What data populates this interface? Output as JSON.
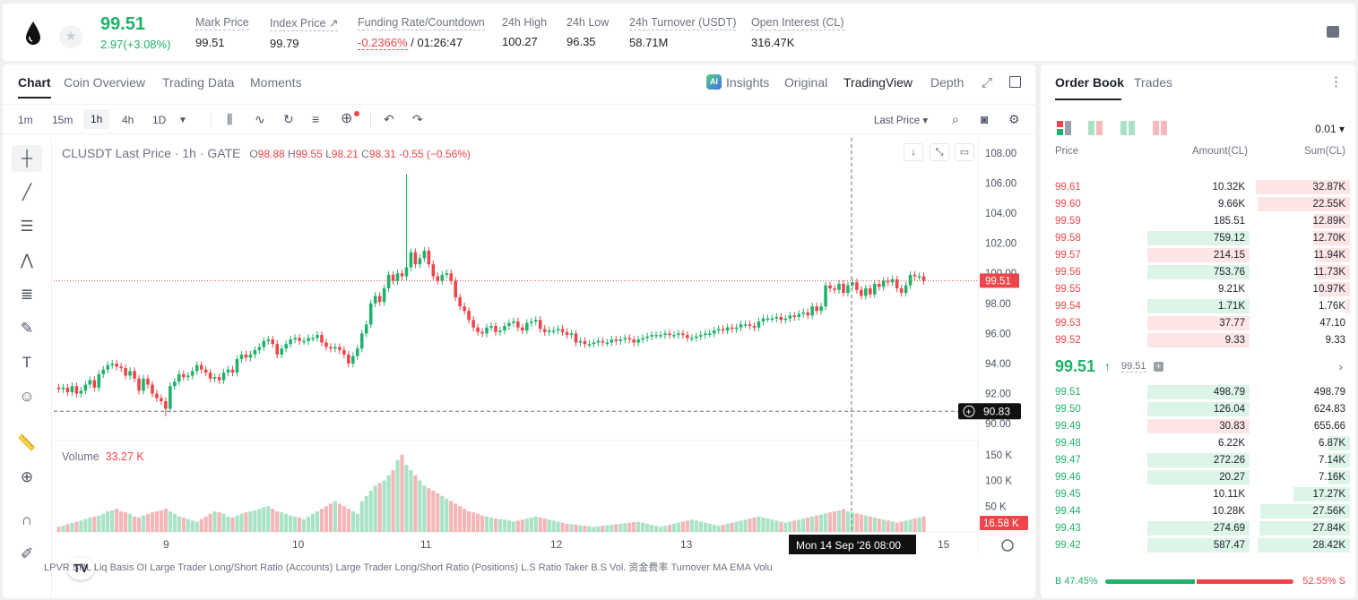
{
  "header": {
    "last_price": "99.51",
    "change": "2.97(+3.08%)",
    "stats": [
      {
        "label": "Mark Price",
        "value": "99.51"
      },
      {
        "label": "Index Price ↗",
        "value": "99.79"
      },
      {
        "label": "Funding Rate/Countdown",
        "value_red": "-0.2366%",
        "value": "/ 01:26:47"
      },
      {
        "label": "24h High",
        "value": "100.27"
      },
      {
        "label": "24h Low",
        "value": "96.35"
      },
      {
        "label": "24h Turnover (USDT)",
        "value": "58.71M"
      },
      {
        "label": "Open Interest (CL)",
        "value": "316.47K"
      }
    ]
  },
  "chart_panel": {
    "tabs": [
      "Chart",
      "Coin Overview",
      "Trading Data",
      "Moments"
    ],
    "view_tabs": [
      "Insights",
      "Original",
      "TradingView",
      "Depth"
    ],
    "ai_badge": "AI",
    "timeframes": [
      "1m",
      "15m",
      "1h",
      "4h",
      "1D"
    ],
    "price_type": "Last Price ▾",
    "legend": {
      "symbol": "CLUSDT Last Price · 1h · GATE",
      "o_label": "O",
      "o": "98.88",
      "h_label": "H",
      "h": "99.55",
      "l_label": "L",
      "l": "98.21",
      "c_label": "C",
      "c": "98.31",
      "chg": "-0.55 (−0.56%)"
    },
    "volume_label": "Volume",
    "volume_value": "33.27 K",
    "bottom_indicators": "LPVR    SRL    Liq    Basis    OI      Large Trader Long/Short Ratio (Accounts)        Large Trader Long/Short Ratio (Positions)       L.S Ratio    Taker B.S Vol.    资金费率     Turnover    MA    EMA    Volu",
    "tv_logo": "TV",
    "accent_green": "#20b26c",
    "accent_red": "#ef454a"
  },
  "chart_data": {
    "type": "candlestick",
    "symbol": "CLUSDT",
    "interval": "1h",
    "price_axis_ticks": [
      "108.00",
      "106.00",
      "104.00",
      "102.00",
      "100.00",
      "98.00",
      "96.00",
      "94.00",
      "92.00",
      "90.00"
    ],
    "volume_axis_ticks": [
      "150 K",
      "100 K",
      "50 K"
    ],
    "x_ticks": [
      "9",
      "10",
      "11",
      "12",
      "13",
      "15"
    ],
    "last_price_label": "99.51",
    "crosshair_price": "90.83",
    "crosshair_time": "Mon 14 Sep '26   08:00",
    "current_volume_label": "16.58 K",
    "ylim": [
      89,
      109
    ],
    "volume_max": 160,
    "closes": [
      92.3,
      92.4,
      92.1,
      92.5,
      92.0,
      92.2,
      92.6,
      92.9,
      92.4,
      93.3,
      93.6,
      93.9,
      94.0,
      93.8,
      93.7,
      93.2,
      93.5,
      93.0,
      92.2,
      93.0,
      92.6,
      92.0,
      91.7,
      91.5,
      91.0,
      92.5,
      92.8,
      93.3,
      93.1,
      93.2,
      93.5,
      93.9,
      93.6,
      93.4,
      93.0,
      93.1,
      92.9,
      93.4,
      93.6,
      93.4,
      94.3,
      94.6,
      94.4,
      94.6,
      94.9,
      95.1,
      95.5,
      95.6,
      95.3,
      94.6,
      95.0,
      95.3,
      95.6,
      95.7,
      95.5,
      95.5,
      95.7,
      95.7,
      95.9,
      95.4,
      95.1,
      95.0,
      95.1,
      94.9,
      94.6,
      94.0,
      94.5,
      95.0,
      96.0,
      96.6,
      98.0,
      98.5,
      98.1,
      99.0,
      99.9,
      99.5,
      100.0,
      99.8,
      100.4,
      101.4,
      100.6,
      101.0,
      101.5,
      100.6,
      99.8,
      99.5,
      99.9,
      100.0,
      99.5,
      98.4,
      97.8,
      97.5,
      96.9,
      96.4,
      96.1,
      96.0,
      96.4,
      96.5,
      96.1,
      96.2,
      96.5,
      96.7,
      96.8,
      96.4,
      96.2,
      96.7,
      96.8,
      96.9,
      96.3,
      96.1,
      96.2,
      96.2,
      96.3,
      96.1,
      95.9,
      96.0,
      95.4,
      95.5,
      95.3,
      95.3,
      95.4,
      95.5,
      95.4,
      95.4,
      95.6,
      95.5,
      95.6,
      95.7,
      95.6,
      95.4,
      95.6,
      95.7,
      95.8,
      95.9,
      95.9,
      95.9,
      96.0,
      95.9,
      95.9,
      96.0,
      95.9,
      95.7,
      95.7,
      95.8,
      95.9,
      96.0,
      96.0,
      96.2,
      96.3,
      96.2,
      96.4,
      96.3,
      96.4,
      96.6,
      96.6,
      96.5,
      96.4,
      96.8,
      97.0,
      97.0,
      97.0,
      97.1,
      96.9,
      97.0,
      97.2,
      97.1,
      97.3,
      97.4,
      97.2,
      97.8,
      97.5,
      97.8,
      99.2,
      99.0,
      98.9,
      99.3,
      98.7,
      99.2,
      99.4,
      98.9,
      98.5,
      99.0,
      98.6,
      99.3,
      99.1,
      99.5,
      99.4,
      99.6,
      99.0,
      98.7,
      99.2,
      99.9,
      99.8,
      99.8,
      99.51
    ],
    "volumes": [
      10,
      12,
      15,
      18,
      20,
      22,
      25,
      28,
      30,
      32,
      35,
      40,
      42,
      45,
      40,
      38,
      35,
      30,
      28,
      32,
      35,
      38,
      40,
      42,
      45,
      40,
      35,
      30,
      28,
      25,
      22,
      20,
      25,
      30,
      35,
      40,
      38,
      35,
      30,
      28,
      32,
      35,
      38,
      40,
      42,
      45,
      48,
      50,
      45,
      40,
      38,
      35,
      32,
      30,
      28,
      25,
      30,
      35,
      40,
      45,
      50,
      55,
      60,
      55,
      50,
      45,
      40,
      35,
      60,
      70,
      80,
      90,
      95,
      100,
      110,
      120,
      140,
      150,
      130,
      120,
      110,
      100,
      90,
      85,
      80,
      75,
      70,
      65,
      60,
      55,
      50,
      45,
      40,
      38,
      35,
      32,
      30,
      28,
      26,
      25,
      24,
      22,
      20,
      22,
      24,
      26,
      28,
      30,
      28,
      26,
      24,
      22,
      20,
      18,
      16,
      15,
      14,
      13,
      12,
      11,
      10,
      11,
      12,
      13,
      14,
      15,
      16,
      17,
      18,
      19,
      20,
      18,
      16,
      14,
      12,
      10,
      12,
      14,
      16,
      18,
      20,
      22,
      24,
      22,
      20,
      18,
      16,
      14,
      12,
      14,
      16,
      18,
      20,
      22,
      24,
      26,
      28,
      30,
      28,
      26,
      24,
      22,
      20,
      18,
      20,
      22,
      24,
      26,
      28,
      30,
      32,
      34,
      36,
      38,
      40,
      42,
      44,
      40,
      38,
      36,
      34,
      32,
      30,
      28,
      26,
      24,
      22,
      20,
      18,
      20,
      22,
      24,
      26,
      28,
      30,
      32,
      34,
      30,
      28,
      26,
      24,
      22,
      20,
      18,
      16.58
    ]
  },
  "order_book": {
    "tabs": [
      "Order Book",
      "Trades"
    ],
    "precision": "0.01 ▾",
    "columns": [
      "Price",
      "Amount(CL)",
      "Sum(CL)"
    ],
    "asks": [
      {
        "price": "99.61",
        "amount": "10.32K",
        "sum": "32.87K",
        "abar": 0.0,
        "sbar": 1.0
      },
      {
        "price": "99.60",
        "amount": "9.66K",
        "sum": "22.55K",
        "abar": 0.0,
        "sbar": 0.98
      },
      {
        "price": "99.59",
        "amount": "185.51",
        "sum": "12.89K",
        "abar": 0.0,
        "sbar": 0.39
      },
      {
        "price": "99.58",
        "amount": "759.12",
        "sum": "12.70K",
        "abar": 1.0,
        "sbar": 0.39,
        "abar_green": true
      },
      {
        "price": "99.57",
        "amount": "214.15",
        "sum": "11.94K",
        "abar": 1.0,
        "sbar": 0.36
      },
      {
        "price": "99.56",
        "amount": "753.76",
        "sum": "11.73K",
        "abar": 1.0,
        "sbar": 0.36,
        "abar_green": true
      },
      {
        "price": "99.55",
        "amount": "9.21K",
        "sum": "10.97K",
        "abar": 0.0,
        "sbar": 0.33
      },
      {
        "price": "99.54",
        "amount": "1.71K",
        "sum": "1.76K",
        "abar": 1.0,
        "sbar": 0.05,
        "abar_green": true
      },
      {
        "price": "99.53",
        "amount": "37.77",
        "sum": "47.10",
        "abar": 1.0,
        "sbar": 0.0
      },
      {
        "price": "99.52",
        "amount": "9.33",
        "sum": "9.33",
        "abar": 1.0,
        "sbar": 0.0
      }
    ],
    "mid_price": "99.51",
    "mid_arrow": "↑",
    "mark_price": "99.51",
    "bids": [
      {
        "price": "99.51",
        "amount": "498.79",
        "sum": "498.79",
        "abar": 1.0,
        "sbar": 0.0
      },
      {
        "price": "99.50",
        "amount": "126.04",
        "sum": "624.83",
        "abar": 1.0,
        "sbar": 0.0
      },
      {
        "price": "99.49",
        "amount": "30.83",
        "sum": "655.66",
        "abar": 1.0,
        "sbar": 0.0,
        "abar_red": true
      },
      {
        "price": "99.48",
        "amount": "6.22K",
        "sum": "6.87K",
        "abar": 0.0,
        "sbar": 0.23
      },
      {
        "price": "99.47",
        "amount": "272.26",
        "sum": "7.14K",
        "abar": 1.0,
        "sbar": 0.23
      },
      {
        "price": "99.46",
        "amount": "20.27",
        "sum": "7.16K",
        "abar": 1.0,
        "sbar": 0.23
      },
      {
        "price": "99.45",
        "amount": "10.11K",
        "sum": "17.27K",
        "abar": 0.0,
        "sbar": 0.6
      },
      {
        "price": "99.44",
        "amount": "10.28K",
        "sum": "27.56K",
        "abar": 0.0,
        "sbar": 0.95
      },
      {
        "price": "99.43",
        "amount": "274.69",
        "sum": "27.84K",
        "abar": 1.0,
        "sbar": 0.96
      },
      {
        "price": "99.42",
        "amount": "587.47",
        "sum": "28.42K",
        "abar": 1.0,
        "sbar": 0.98
      }
    ],
    "buy_ratio_label": "B 47.45%",
    "sell_ratio_label": "52.55% S",
    "buy_ratio": 0.4745
  }
}
